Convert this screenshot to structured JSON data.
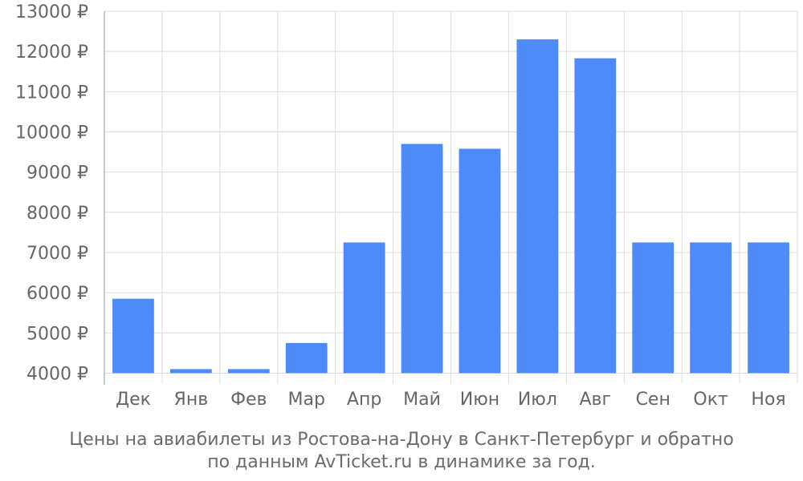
{
  "chart_data": {
    "type": "bar",
    "title": "",
    "xlabel": "",
    "ylabel": "",
    "categories": [
      "Дек",
      "Янв",
      "Фев",
      "Мар",
      "Апр",
      "Май",
      "Июн",
      "Июл",
      "Авг",
      "Сен",
      "Окт",
      "Ноя"
    ],
    "values": [
      5850,
      4100,
      4100,
      4750,
      7250,
      9700,
      9580,
      12300,
      11830,
      7250,
      7250,
      7250
    ],
    "ylim": [
      3750,
      13000
    ],
    "yticks": [
      4000,
      5000,
      6000,
      7000,
      8000,
      9000,
      10000,
      11000,
      12000,
      13000
    ],
    "ytick_suffix": " ₽",
    "grid": true,
    "bar_color": "#4d8afa"
  },
  "caption": {
    "line1": "Цены на авиабилеты из Ростова-на-Дону в Санкт-Петербург и обратно",
    "line2": "по данным AvTicket.ru в динамике за год."
  }
}
